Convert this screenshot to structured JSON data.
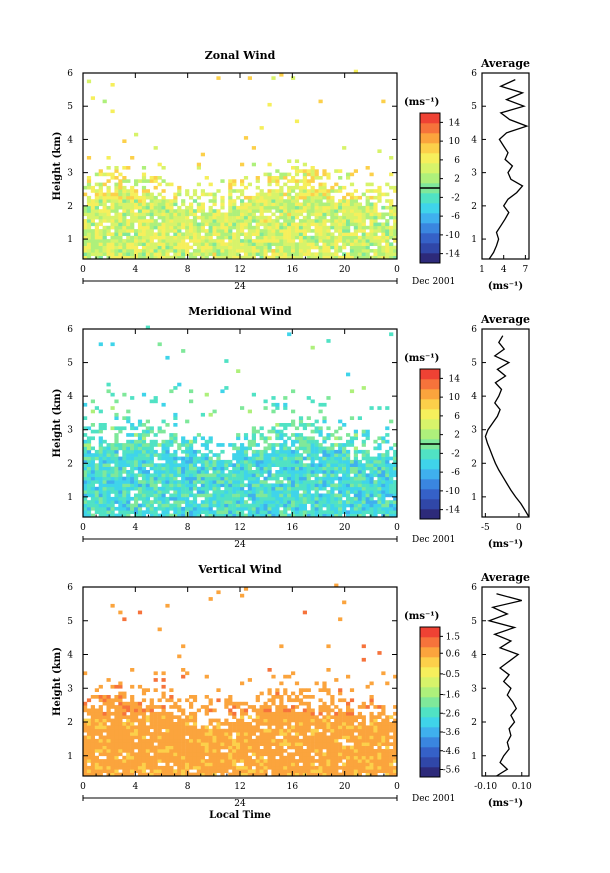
{
  "chart_data": [
    {
      "type": "heatmap",
      "title": "Zonal Wind",
      "ylabel": "Height (km)",
      "xlabel": "",
      "x_ticks": [
        "0",
        "4",
        "8",
        "12",
        "16",
        "20",
        "0"
      ],
      "y_ticks": [
        "1",
        "2",
        "3",
        "4",
        "5",
        "6"
      ],
      "date_tick": "24",
      "date_label": "Dec 2001",
      "xlim": [
        0,
        24
      ],
      "ylim": [
        0.4,
        6
      ],
      "colorbar": {
        "unit": "(ms⁻¹)",
        "labels": [
          "14",
          "10",
          "6",
          "2",
          "-2",
          "-6",
          "-10",
          "-14"
        ],
        "range": [
          -16,
          16
        ],
        "zero_line": 0
      },
      "field": {
        "base_value": 4,
        "ceiling_km": 2.0,
        "core_km": 2.2,
        "thin_top_km": 3.5,
        "spread": 3.5
      },
      "profile": {
        "title": "Average",
        "xlabel": "(ms⁻¹)",
        "x_ticks": [
          "1",
          "4",
          "7"
        ],
        "xlim": [
          1,
          7.5
        ],
        "heights": [
          0.4,
          0.6,
          0.8,
          1.0,
          1.2,
          1.4,
          1.6,
          1.8,
          2.0,
          2.2,
          2.4,
          2.6,
          2.8,
          3.0,
          3.2,
          3.4,
          3.6,
          3.8,
          4.0,
          4.2,
          4.4,
          4.6,
          4.8,
          5.0,
          5.2,
          5.4,
          5.6,
          5.8
        ],
        "values": [
          2.0,
          2.6,
          3.0,
          3.3,
          3.0,
          3.6,
          4.2,
          4.7,
          4.0,
          4.6,
          5.8,
          6.6,
          5.0,
          4.6,
          5.2,
          4.2,
          4.6,
          4.0,
          3.4,
          4.4,
          7.2,
          4.8,
          3.6,
          6.8,
          4.4,
          6.6,
          3.6,
          5.6
        ]
      }
    },
    {
      "type": "heatmap",
      "title": "Meridional Wind",
      "ylabel": "Height (km)",
      "xlabel": "",
      "x_ticks": [
        "0",
        "4",
        "8",
        "12",
        "16",
        "20",
        "0"
      ],
      "y_ticks": [
        "1",
        "2",
        "3",
        "4",
        "5",
        "6"
      ],
      "date_tick": "24",
      "date_label": "Dec 2001",
      "xlim": [
        0,
        24
      ],
      "ylim": [
        0.4,
        6
      ],
      "colorbar": {
        "unit": "(ms⁻¹)",
        "labels": [
          "14",
          "10",
          "6",
          "2",
          "-2",
          "-6",
          "-10",
          "-14"
        ],
        "range": [
          -16,
          16
        ],
        "zero_line": 0
      },
      "field": {
        "base_value": -3,
        "ceiling_km": 2.2,
        "core_km": 2.4,
        "thin_top_km": 4.5,
        "spread": 3.0
      },
      "profile": {
        "title": "Average",
        "xlabel": "(ms⁻¹)",
        "x_ticks": [
          "-5",
          "0"
        ],
        "xlim": [
          -5.5,
          1.5
        ],
        "heights": [
          0.4,
          0.6,
          0.8,
          1.0,
          1.2,
          1.4,
          1.6,
          1.8,
          2.0,
          2.2,
          2.4,
          2.6,
          2.8,
          3.0,
          3.2,
          3.4,
          3.6,
          3.8,
          4.0,
          4.2,
          4.4,
          4.6,
          4.8,
          5.0,
          5.2,
          5.4,
          5.6,
          5.8
        ],
        "values": [
          1.5,
          0.9,
          0.3,
          -0.5,
          -1.2,
          -1.8,
          -2.4,
          -3.0,
          -3.5,
          -3.9,
          -4.3,
          -4.7,
          -5.0,
          -4.6,
          -3.9,
          -3.2,
          -2.8,
          -3.6,
          -3.0,
          -2.6,
          -3.5,
          -2.0,
          -3.2,
          -1.5,
          -3.6,
          -2.2,
          -3.0,
          -2.4
        ]
      }
    },
    {
      "type": "heatmap",
      "title": "Vertical Wind",
      "ylabel": "Height (km)",
      "xlabel": "Local Time",
      "x_ticks": [
        "0",
        "4",
        "8",
        "12",
        "16",
        "20",
        "0"
      ],
      "y_ticks": [
        "1",
        "2",
        "3",
        "4",
        "5",
        "6"
      ],
      "date_tick": "24",
      "date_label": "Dec 2001",
      "xlim": [
        0,
        24
      ],
      "ylim": [
        0.4,
        6
      ],
      "colorbar": {
        "unit": "(ms⁻¹)",
        "labels": [
          "1.5",
          "0.6",
          "-0.5",
          "-1.6",
          "-2.6",
          "-3.6",
          "-4.6",
          "-5.6"
        ],
        "range": [
          -6,
          2
        ],
        "zero_line": null
      },
      "field": {
        "base_value": 0.6,
        "ceiling_km": 2.0,
        "core_km": 2.2,
        "thin_top_km": 3.6,
        "spread": 0.3
      },
      "profile": {
        "title": "Average",
        "xlabel": "(ms⁻¹)",
        "x_ticks": [
          "-0.10",
          "0.10"
        ],
        "xlim": [
          -0.12,
          0.14
        ],
        "heights": [
          0.4,
          0.6,
          0.8,
          1.0,
          1.2,
          1.4,
          1.6,
          1.8,
          2.0,
          2.2,
          2.4,
          2.6,
          2.8,
          3.0,
          3.2,
          3.4,
          3.6,
          3.8,
          4.0,
          4.2,
          4.4,
          4.6,
          4.8,
          5.0,
          5.2,
          5.4,
          5.6,
          5.8
        ],
        "values": [
          -0.04,
          0.02,
          -0.02,
          0.0,
          0.03,
          0.02,
          0.04,
          0.03,
          0.06,
          0.04,
          0.07,
          0.05,
          0.02,
          0.04,
          0.0,
          0.03,
          -0.02,
          0.03,
          0.08,
          -0.02,
          0.04,
          -0.05,
          0.06,
          -0.08,
          0.02,
          -0.06,
          0.1,
          -0.04
        ]
      }
    }
  ]
}
